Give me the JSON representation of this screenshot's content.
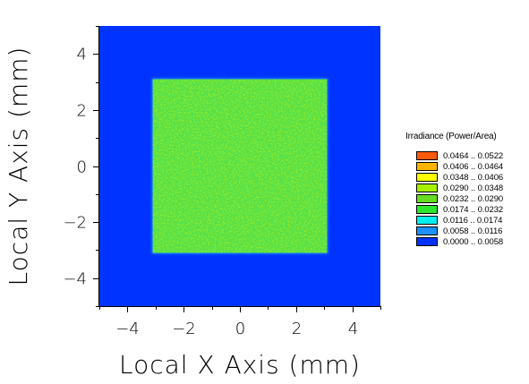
{
  "chart_data": {
    "type": "heatmap",
    "title": "",
    "xlabel": "Local X Axis (mm)",
    "ylabel": "Local Y Axis (mm)",
    "xlim": [
      -5,
      5
    ],
    "ylim": [
      -5,
      5
    ],
    "x_ticks": [
      "−4",
      "−2",
      "0",
      "2",
      "4"
    ],
    "x_tick_values": [
      -4,
      -2,
      0,
      2,
      4
    ],
    "y_ticks": [
      "4",
      "2",
      "0",
      "−2",
      "−4"
    ],
    "y_tick_values": [
      4,
      2,
      0,
      -2,
      -4
    ],
    "x_minor_tick_values": [
      -5,
      -3,
      -1,
      1,
      3,
      5
    ],
    "y_minor_tick_values": [
      5,
      3,
      1,
      -1,
      -3,
      -5
    ],
    "background_color": "#0033ff",
    "illuminated_region": {
      "x_range": [
        -3.1,
        3.1
      ],
      "y_range": [
        -3.1,
        3.1
      ],
      "dominant_color": "#55e04a",
      "value_range": [
        0.0174,
        0.0348
      ]
    },
    "legend": {
      "title": "Irradiance (Power/Area)",
      "placement": "right",
      "entries": [
        {
          "label": "0.0464 .. 0.0522",
          "color": "#ff5a0a"
        },
        {
          "label": "0.0406 .. 0.0464",
          "color": "#ffb400"
        },
        {
          "label": "0.0348 .. 0.0406",
          "color": "#ffff00"
        },
        {
          "label": "0.0290 .. 0.0348",
          "color": "#a6f000"
        },
        {
          "label": "0.0232 .. 0.0290",
          "color": "#66dd22"
        },
        {
          "label": "0.0174 .. 0.0232",
          "color": "#2ee62e"
        },
        {
          "label": "0.0116 .. 0.0174",
          "color": "#00f0f0"
        },
        {
          "label": "0.0058 .. 0.0116",
          "color": "#1e90ff"
        },
        {
          "label": "0.0000 .. 0.0058",
          "color": "#0033ff"
        }
      ]
    }
  }
}
